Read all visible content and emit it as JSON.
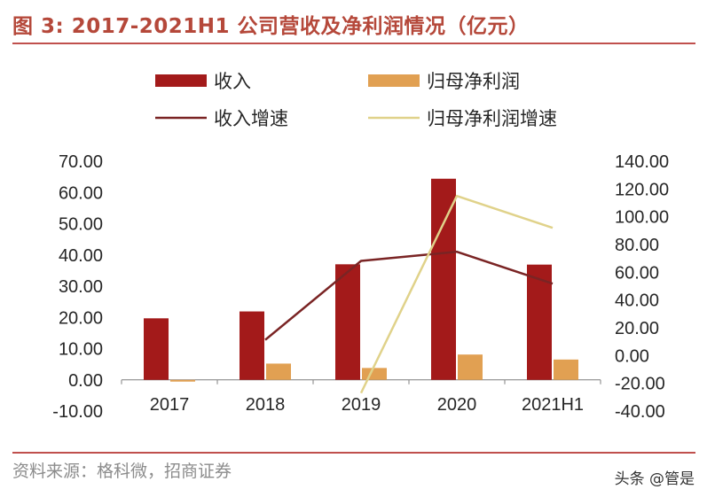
{
  "figure_title": "图 3:  2017-2021H1 公司营收及净利润情况（亿元）",
  "source_text": "资料来源：格科微，招商证券",
  "watermark": "头条 @管是",
  "colors": {
    "revenue": "#a31a1a",
    "net_profit": "#e1a052",
    "revenue_growth": "#7a2424",
    "net_profit_growth": "#e0d28a",
    "title": "#b5483a",
    "rule": "#c0504d"
  },
  "chart_data": {
    "type": "bar",
    "categories": [
      "2017",
      "2018",
      "2019",
      "2020",
      "2021H1"
    ],
    "series": [
      {
        "name": "收入",
        "type": "bar",
        "axis": "left",
        "values": [
          19.7,
          21.9,
          37.0,
          64.4,
          36.9
        ]
      },
      {
        "name": "归母净利润",
        "type": "bar",
        "axis": "left",
        "values": [
          -0.4,
          5.2,
          3.8,
          8.1,
          6.5
        ]
      },
      {
        "name": "收入增速",
        "type": "line",
        "axis": "right",
        "values": [
          null,
          11.3,
          68.2,
          74.8,
          51.8
        ]
      },
      {
        "name": "归母净利润增速",
        "type": "line",
        "axis": "right",
        "values": [
          null,
          null,
          -27.0,
          115.0,
          92.0
        ]
      }
    ],
    "left_axis": {
      "ticks": [
        "70.00",
        "60.00",
        "50.00",
        "40.00",
        "30.00",
        "20.00",
        "10.00",
        "0.00",
        "-10.00"
      ],
      "ylim": [
        -10,
        70
      ]
    },
    "right_axis": {
      "ticks": [
        "140.00",
        "120.00",
        "100.00",
        "80.00",
        "60.00",
        "40.00",
        "20.00",
        "0.00",
        "-20.00",
        "-40.00"
      ],
      "ylim": [
        -40,
        140
      ]
    },
    "legend": [
      "收入",
      "归母净利润",
      "收入增速",
      "归母净利润增速"
    ],
    "legend_position": "top",
    "grid": false
  }
}
